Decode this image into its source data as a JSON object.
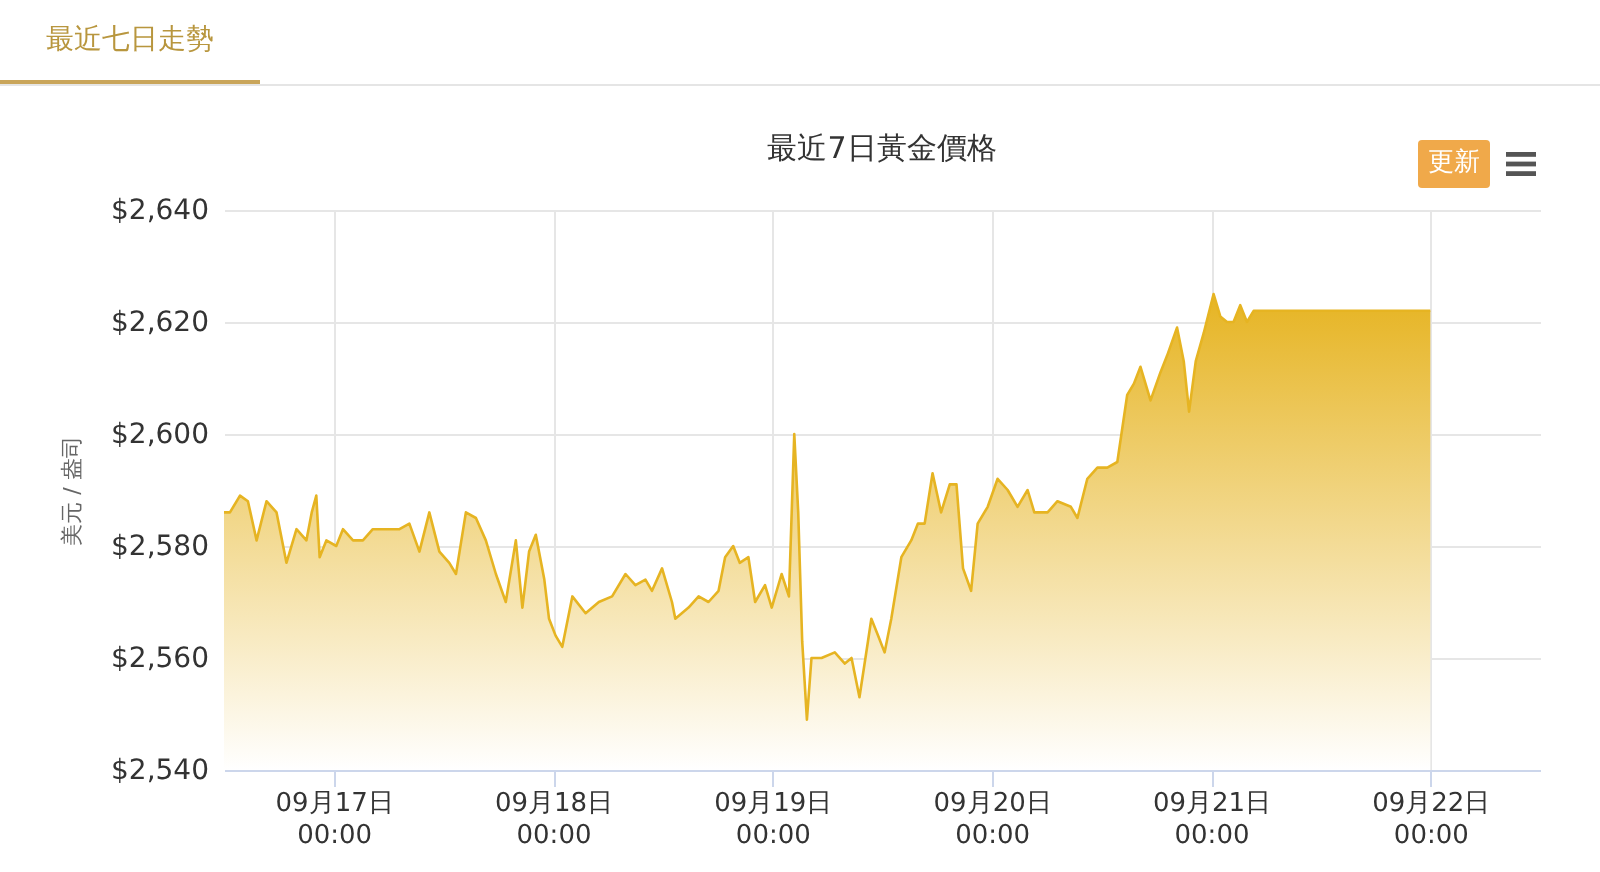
{
  "chart_data": {
    "type": "area",
    "title": "最近7日黃金價格",
    "ylabel": "美元 / 盎司",
    "annotations": [
      "最近七日走勢",
      "更新"
    ],
    "grid": true,
    "xlim": [
      "--09-16T12:00",
      "--09-22T12:00"
    ],
    "xticks": [
      {
        "value": "--09-17T00:00",
        "label": "09月17日\n00:00"
      },
      {
        "value": "--09-18T00:00",
        "label": "09月18日\n00:00"
      },
      {
        "value": "--09-19T00:00",
        "label": "09月19日\n00:00"
      },
      {
        "value": "--09-20T00:00",
        "label": "09月20日\n00:00"
      },
      {
        "value": "--09-21T00:00",
        "label": "09月21日\n00:00"
      },
      {
        "value": "--09-22T00:00",
        "label": "09月22日\n00:00"
      }
    ],
    "ylim": [
      2540,
      2640
    ],
    "yticks": [
      {
        "value": 2540,
        "label": "$2,540"
      },
      {
        "value": 2560,
        "label": "$2,560"
      },
      {
        "value": 2580,
        "label": "$2,580"
      },
      {
        "value": 2600,
        "label": "$2,600"
      },
      {
        "value": 2620,
        "label": "$2,620"
      },
      {
        "value": 2640,
        "label": "$2,640"
      }
    ],
    "x": [
      "--09-16T12:00",
      "--09-16T12:39",
      "--09-16T13:45",
      "--09-16T14:37",
      "--09-16T15:34",
      "--09-16T16:39",
      "--09-16T17:45",
      "--09-16T18:50",
      "--09-16T19:56",
      "--09-16T21:01",
      "--09-16T21:36",
      "--09-16T22:06",
      "--09-16T22:28",
      "--09-16T23:12",
      "--09-17T00:17",
      "--09-17T01:01",
      "--09-17T02:07",
      "--09-17T03:12",
      "--09-17T04:17",
      "--09-17T05:45",
      "--09-17T07:12",
      "--09-17T08:17",
      "--09-17T09:23",
      "--09-17T10:28",
      "--09-17T11:34",
      "--09-17T12:39",
      "--09-17T13:23",
      "--09-17T14:28",
      "--09-17T15:34",
      "--09-17T16:39",
      "--09-17T17:45",
      "--09-17T18:50",
      "--09-17T19:56",
      "--09-17T20:39",
      "--09-17T21:23",
      "--09-17T22:07",
      "--09-17T23:03",
      "--09-17T23:34",
      "--09-18T00:17",
      "--09-18T01:01",
      "--09-18T02:07",
      "--09-18T03:34",
      "--09-18T05:01",
      "--09-18T06:28",
      "--09-18T07:56",
      "--09-18T09:01",
      "--09-18T10:07",
      "--09-18T10:50",
      "--09-18T11:56",
      "--09-18T13:01",
      "--09-18T13:23",
      "--09-18T14:50",
      "--09-18T15:56",
      "--09-18T17:01",
      "--09-18T18:07",
      "--09-18T18:50",
      "--09-18T19:43",
      "--09-18T20:26",
      "--09-18T21:23",
      "--09-18T22:07",
      "--09-18T23:12",
      "--09-18T23:56",
      "--09-19T01:01",
      "--09-19T01:49",
      "--09-19T02:24",
      "--09-19T02:50",
      "--09-19T03:16",
      "--09-19T03:47",
      "--09-19T04:17",
      "--09-19T05:23",
      "--09-19T06:50",
      "--09-19T07:56",
      "--09-19T08:40",
      "--09-19T09:32",
      "--09-19T10:28",
      "--09-19T10:50",
      "--09-19T11:34",
      "--09-19T12:17",
      "--09-19T13:01",
      "--09-19T14:07",
      "--09-19T15:12",
      "--09-19T15:56",
      "--09-19T16:40",
      "--09-19T17:32",
      "--09-19T18:28",
      "--09-19T19:25",
      "--09-19T20:09",
      "--09-19T20:52",
      "--09-19T21:45",
      "--09-19T22:28",
      "--09-19T23:34",
      "--09-20T00:39",
      "--09-20T01:45",
      "--09-20T02:50",
      "--09-20T03:56",
      "--09-20T04:40",
      "--09-20T06:07",
      "--09-20T07:12",
      "--09-20T08:40",
      "--09-20T09:23",
      "--09-20T10:28",
      "--09-20T11:34",
      "--09-20T12:39",
      "--09-20T13:45",
      "--09-20T14:50",
      "--09-20T15:34",
      "--09-20T16:17",
      "--09-20T17:23",
      "--09-20T18:28",
      "--09-20T19:12",
      "--09-20T20:17",
      "--09-20T21:01",
      "--09-20T21:36",
      "--09-20T22:20",
      "--09-20T23:12",
      "--09-21T00:17",
      "--09-21T01:01",
      "--09-21T01:45",
      "--09-21T02:28",
      "--09-21T03:12",
      "--09-21T03:56",
      "--09-21T04:40",
      "--09-21T05:24",
      "--09-22T00:00"
    ],
    "series": [
      {
        "color": "#e6b422",
        "values": [
          2586,
          2586,
          2589,
          2588,
          2581,
          2588,
          2586,
          2577,
          2583,
          2581,
          2586,
          2589,
          2578,
          2581,
          2580,
          2583,
          2581,
          2581,
          2583,
          2583,
          2583,
          2584,
          2579,
          2586,
          2579,
          2577,
          2575,
          2586,
          2585,
          2581,
          2575,
          2570,
          2581,
          2569,
          2579,
          2582,
          2574,
          2567,
          2564,
          2562,
          2571,
          2568,
          2570,
          2571,
          2575,
          2573,
          2574,
          2572,
          2576,
          2570,
          2567,
          2569,
          2571,
          2570,
          2572,
          2578,
          2580,
          2577,
          2578,
          2570,
          2573,
          2569,
          2575,
          2571,
          2600,
          2586,
          2563,
          2549,
          2560,
          2560,
          2561,
          2559,
          2560,
          2553,
          2563,
          2567,
          2564,
          2561,
          2567,
          2578,
          2581,
          2584,
          2584,
          2593,
          2586,
          2591,
          2591,
          2576,
          2572,
          2584,
          2587,
          2592,
          2590,
          2587,
          2590,
          2586,
          2586,
          2588,
          2587,
          2585,
          2592,
          2594,
          2594,
          2595,
          2607,
          2609,
          2612,
          2606,
          2611,
          2614,
          2619,
          2613,
          2604,
          2613,
          2618,
          2625,
          2621,
          2620,
          2620,
          2623,
          2620,
          2622,
          2622,
          2622
        ]
      }
    ]
  }
}
